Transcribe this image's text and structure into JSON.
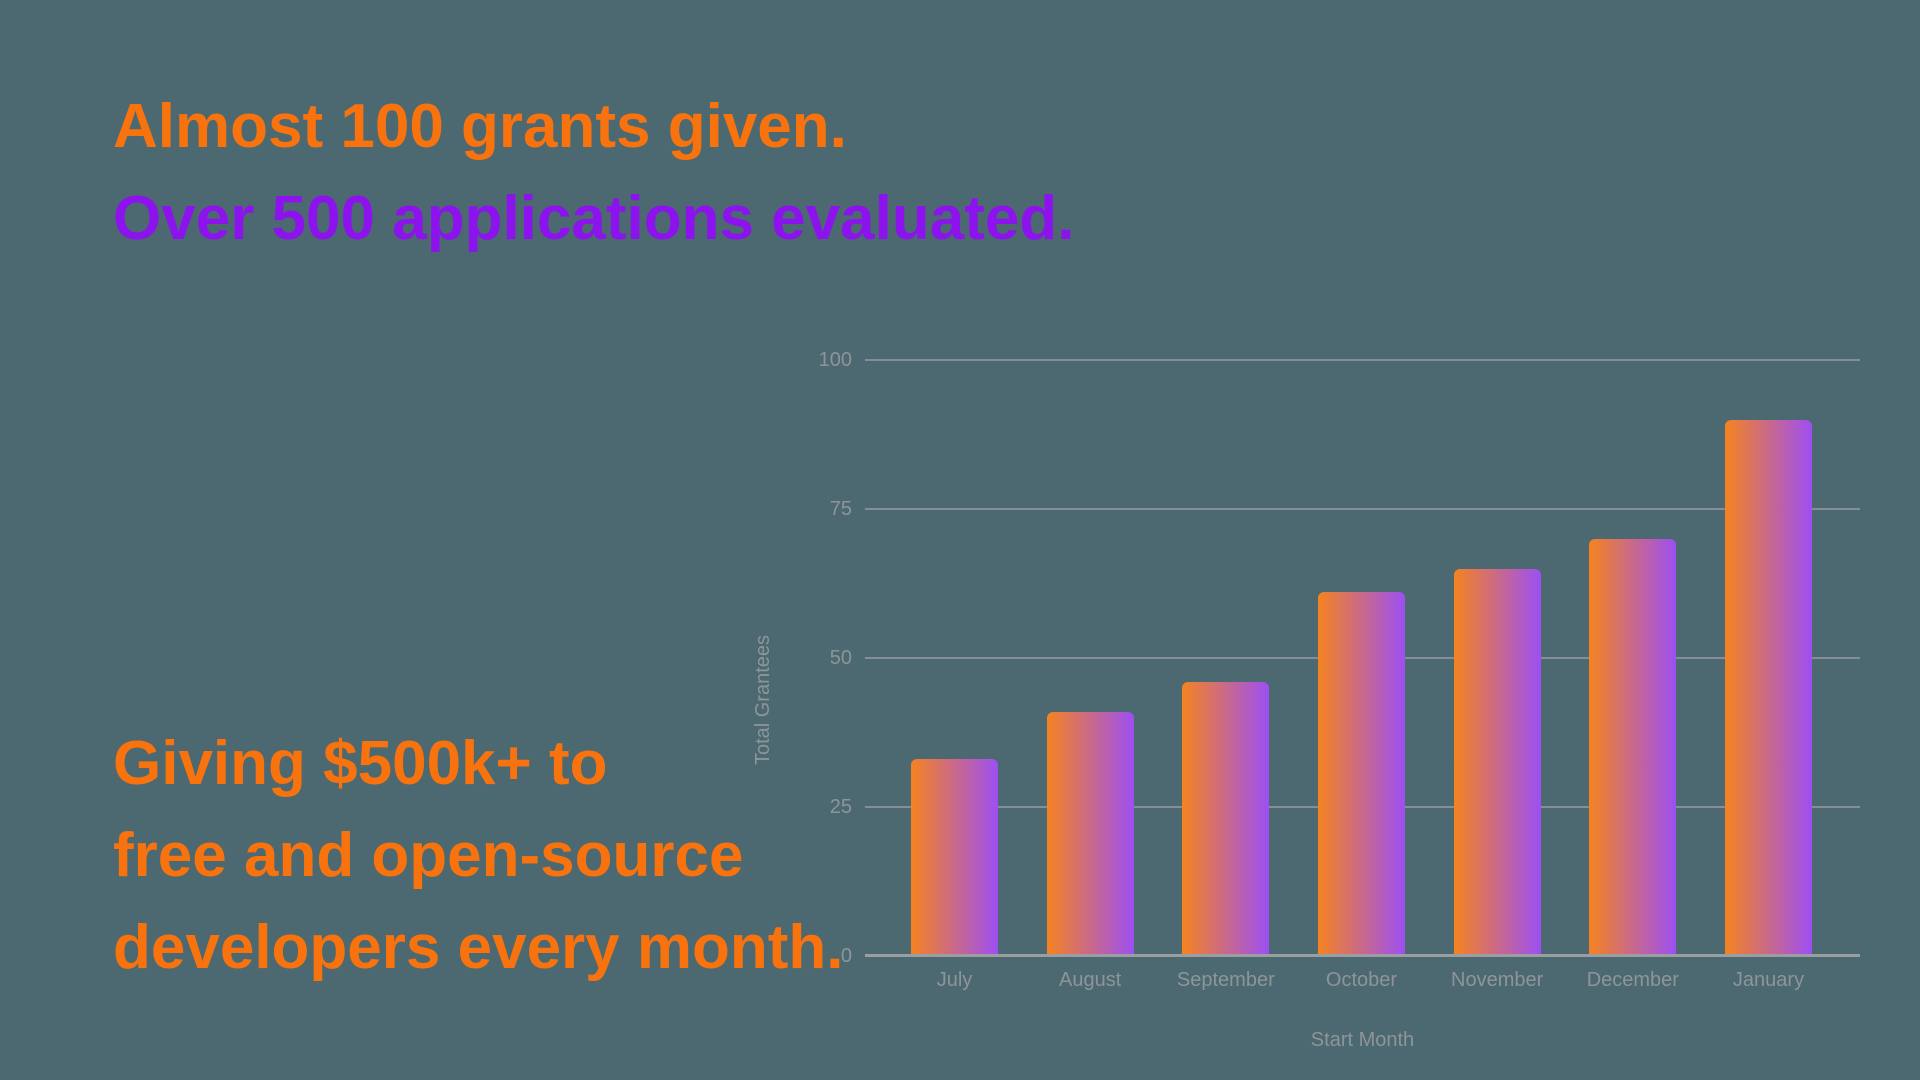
{
  "page": {
    "background": "#4C6870"
  },
  "headline": {
    "line1": "Almost 100 grants given.",
    "line2": "Over 500 applications evaluated.",
    "line1_color": "#F8730E",
    "line2_color": "#8D13EE"
  },
  "subheadline": {
    "line1": "Giving $500k+ to",
    "line2": "free and open-source",
    "line3": "developers every month.",
    "color": "#F8730E"
  },
  "chart_data": {
    "type": "bar",
    "title": "",
    "categories": [
      "July",
      "August",
      "September",
      "October",
      "November",
      "December",
      "January"
    ],
    "values": [
      33,
      41,
      46,
      61,
      65,
      70,
      90
    ],
    "xlabel": "Start Month",
    "ylabel": "Total Grantees",
    "ylim": [
      0,
      100
    ],
    "yticks": [
      0,
      25,
      50,
      75,
      100
    ],
    "grid": true,
    "legend_position": "none",
    "bar_gradient_left": "#F58321",
    "bar_gradient_right": "#9D4FF3",
    "grid_color": "#9094A0",
    "axis_line_color": "#9B9EA1",
    "label_color": "#8E959A"
  }
}
